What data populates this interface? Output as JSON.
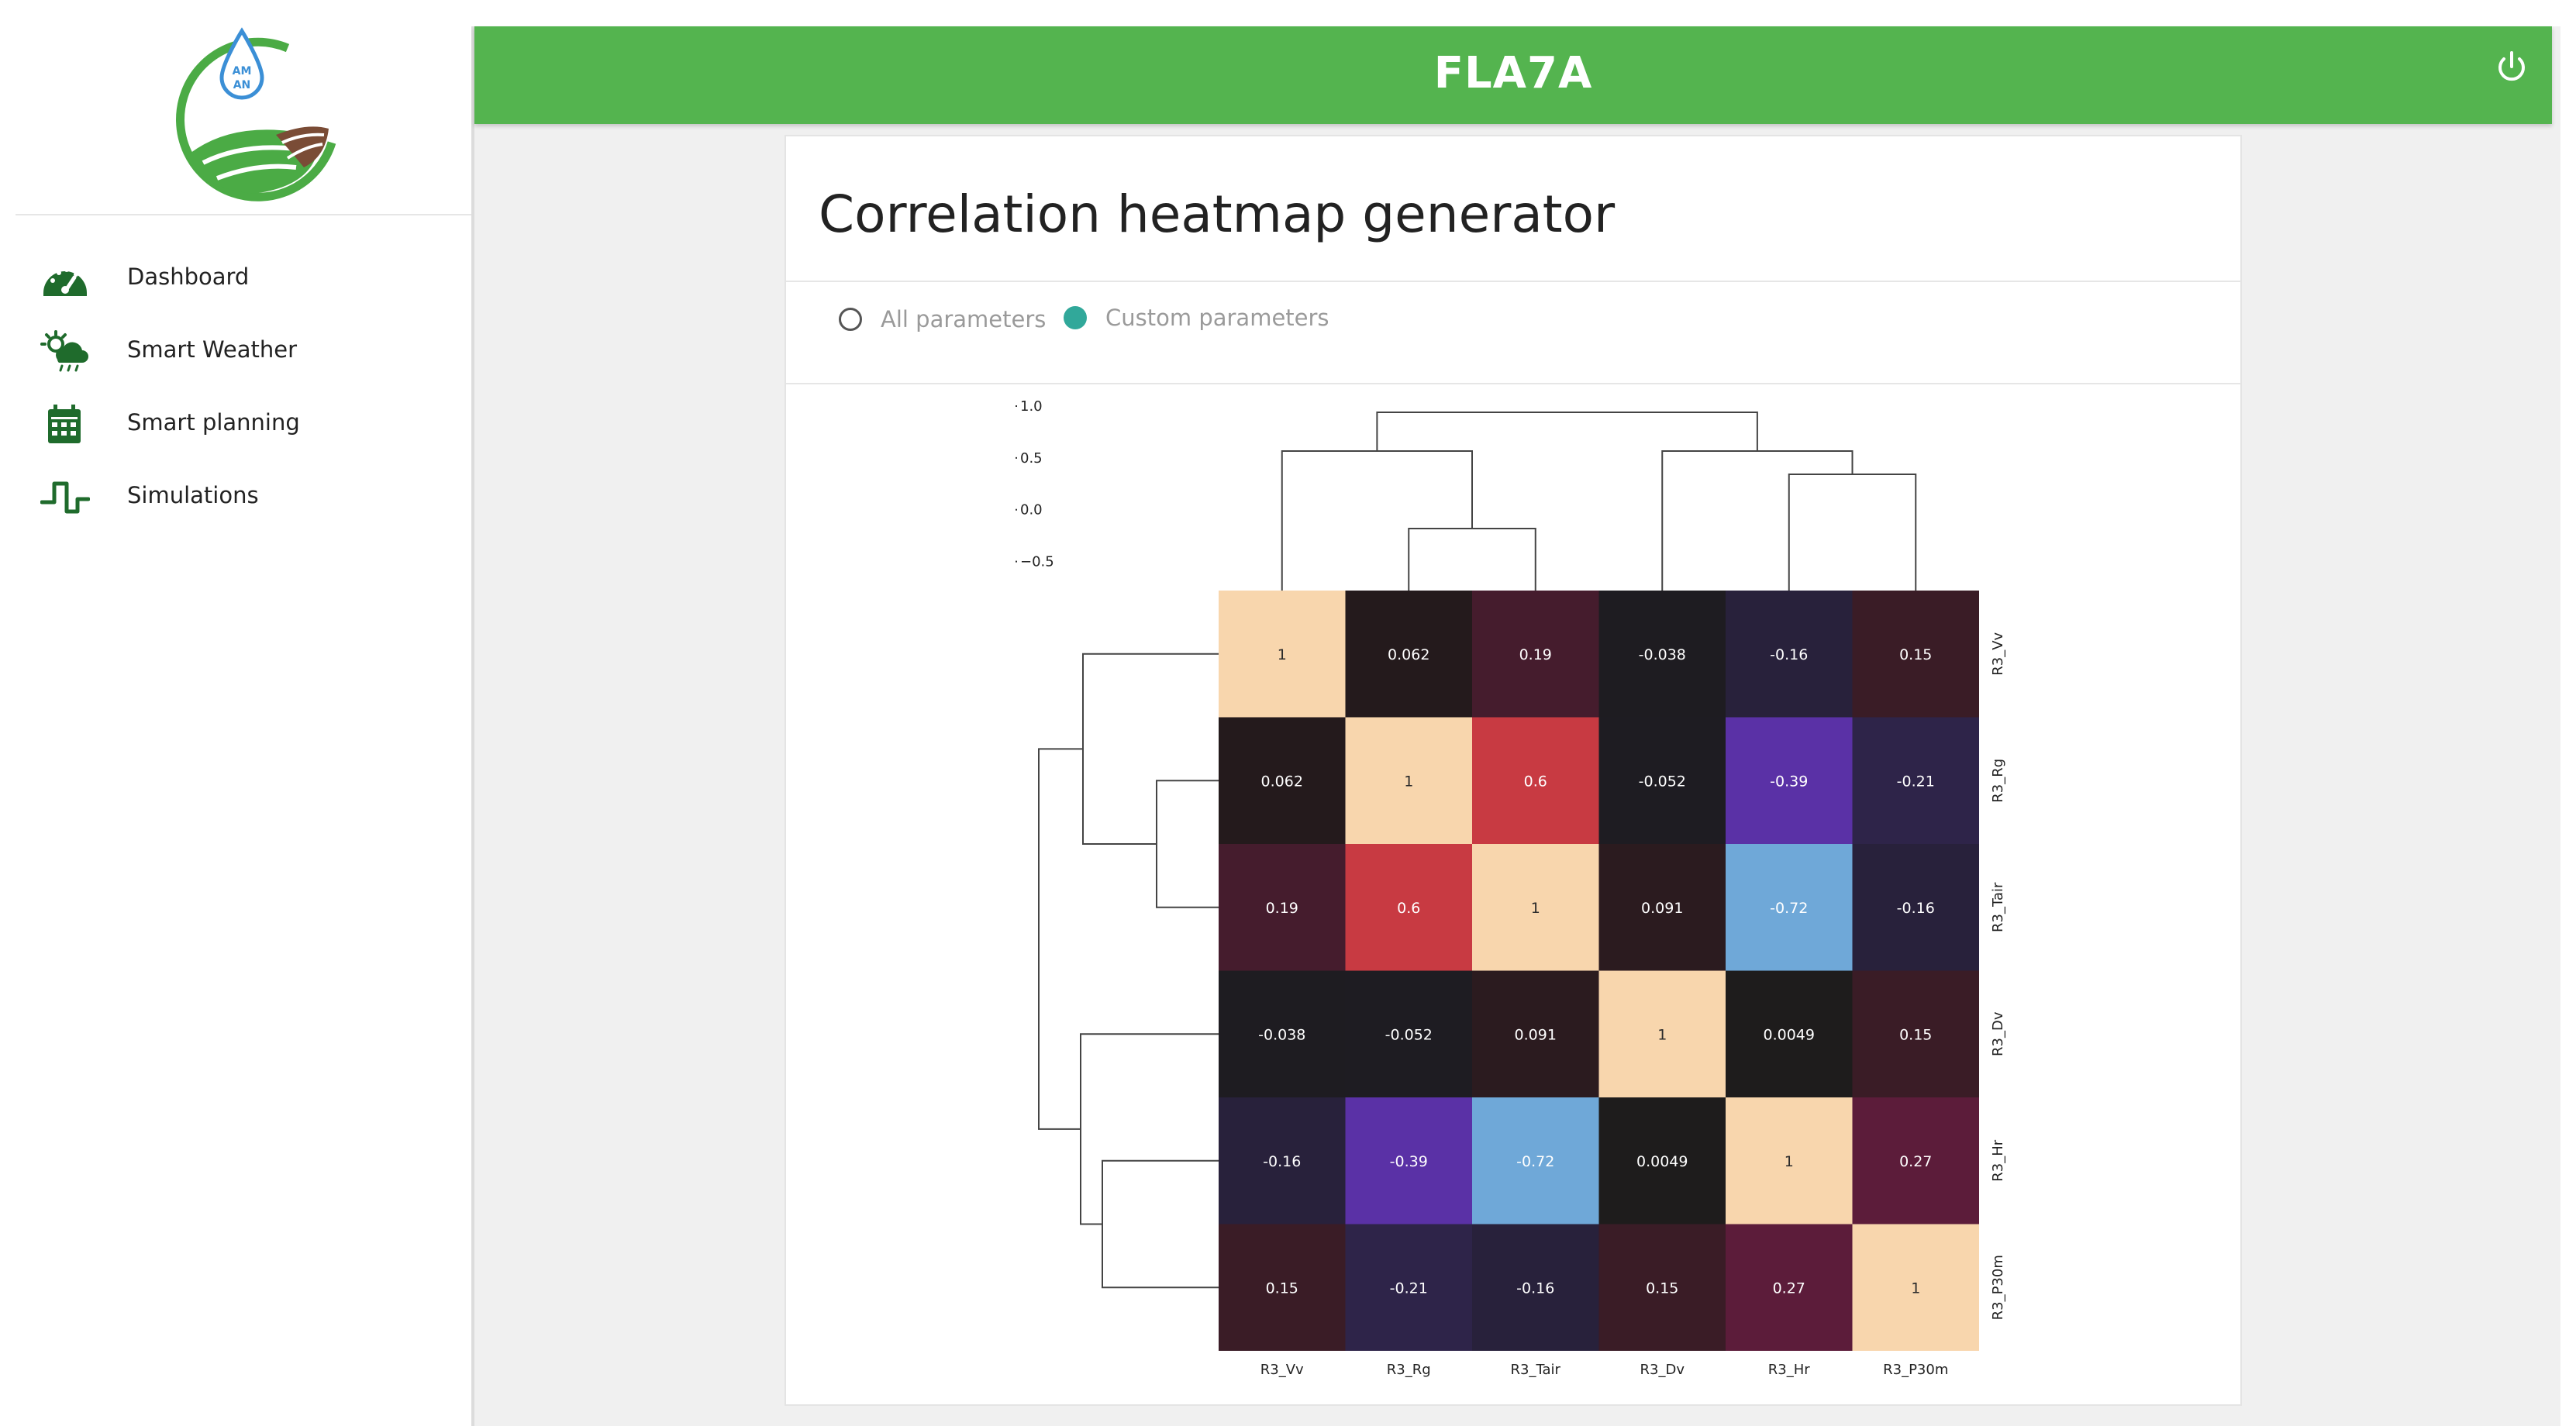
{
  "app": {
    "title": "FLA7A"
  },
  "logo": {
    "text_top": "AM",
    "text_bottom": "AN"
  },
  "sidebar": {
    "items": [
      {
        "label": "Dashboard",
        "icon": "speedometer-icon"
      },
      {
        "label": "Smart Weather",
        "icon": "weather-icon"
      },
      {
        "label": "Smart planning",
        "icon": "calendar-icon"
      },
      {
        "label": "Simulations",
        "icon": "signal-wave-icon"
      }
    ]
  },
  "page": {
    "title": "Correlation heatmap generator",
    "options": [
      {
        "label": "All parameters",
        "selected": false
      },
      {
        "label": "Custom parameters",
        "selected": true
      }
    ]
  },
  "colors": {
    "header": "#54b44f",
    "accent": "#31a89a",
    "sidebar_icon": "#1f6b2c"
  },
  "chart_data": {
    "type": "heatmap",
    "title": "",
    "row_labels": [
      "R3_Vv",
      "R3_Rg",
      "R3_Tair",
      "R3_Dv",
      "R3_Hr",
      "R3_P30m"
    ],
    "col_labels": [
      "R3_Vv",
      "R3_Rg",
      "R3_Tair",
      "R3_Dv",
      "R3_Hr",
      "R3_P30m"
    ],
    "values": [
      [
        1,
        0.062,
        0.19,
        -0.038,
        -0.16,
        0.15
      ],
      [
        0.062,
        1,
        0.6,
        -0.052,
        -0.39,
        -0.21
      ],
      [
        0.19,
        0.6,
        1,
        0.091,
        -0.72,
        -0.16
      ],
      [
        -0.038,
        -0.052,
        0.091,
        1,
        0.0049,
        0.15
      ],
      [
        -0.16,
        -0.39,
        -0.72,
        0.0049,
        1,
        0.27
      ],
      [
        0.15,
        -0.21,
        -0.16,
        0.15,
        0.27,
        1
      ]
    ],
    "annotations": [
      [
        "1",
        "0.062",
        "0.19",
        "-0.038",
        "-0.16",
        "0.15"
      ],
      [
        "0.062",
        "1",
        "0.6",
        "-0.052",
        "-0.39",
        "-0.21"
      ],
      [
        "0.19",
        "0.6",
        "1",
        "0.091",
        "-0.72",
        "-0.16"
      ],
      [
        "-0.038",
        "-0.052",
        "0.091",
        "1",
        "0.0049",
        "0.15"
      ],
      [
        "-0.16",
        "-0.39",
        "-0.72",
        "0.0049",
        "1",
        "0.27"
      ],
      [
        "0.15",
        "-0.21",
        "-0.16",
        "0.15",
        "0.27",
        "1"
      ]
    ],
    "colorbar": {
      "min": -0.72,
      "max": 1.0,
      "ticks": [
        1.0,
        0.5,
        0.0,
        -0.5
      ],
      "tick_labels": [
        "1.0",
        "0.5",
        "0.0",
        "−0.5"
      ]
    },
    "colormap": "icefire",
    "dendrogram": {
      "row": true,
      "col": true
    },
    "grid": false
  }
}
